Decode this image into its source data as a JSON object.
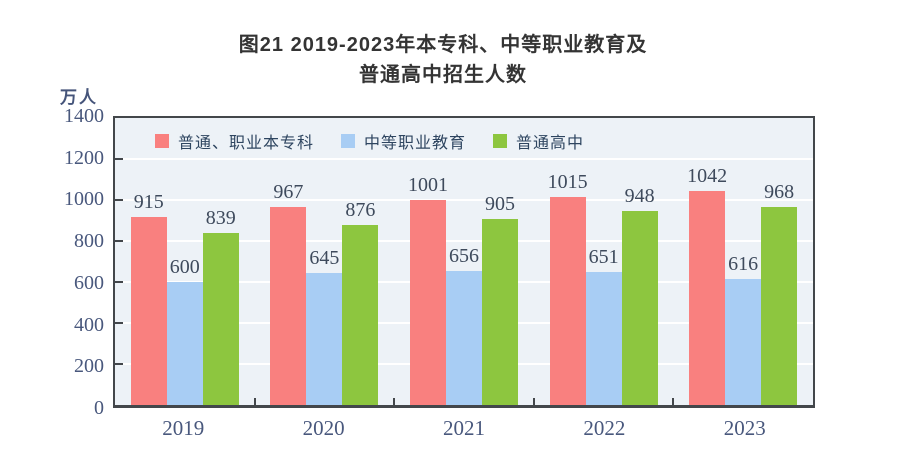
{
  "title": {
    "line1": "图21  2019-2023年本专科、中等职业教育及",
    "line2": "普通高中招生人数"
  },
  "chart_data": {
    "type": "bar",
    "title": "图21 2019-2023年本专科、中等职业教育及普通高中招生人数",
    "xlabel": "",
    "ylabel": "万人",
    "categories": [
      "2019",
      "2020",
      "2021",
      "2022",
      "2023"
    ],
    "series": [
      {
        "name": "普通、职业本专科",
        "color": "#f9807f",
        "values": [
          915,
          967,
          1001,
          1015,
          1042
        ]
      },
      {
        "name": "中等职业教育",
        "color": "#a8cdf4",
        "values": [
          600,
          645,
          656,
          651,
          616
        ]
      },
      {
        "name": "普通高中",
        "color": "#8dc63f",
        "values": [
          839,
          876,
          905,
          948,
          968
        ]
      }
    ],
    "ylim": [
      0,
      1400
    ],
    "yticks": [
      0,
      200,
      400,
      600,
      800,
      1000,
      1200,
      1400
    ],
    "grid": true,
    "legend_position": "top-inside-left"
  },
  "colors": {
    "plot_background": "#edf2f7",
    "gridline": "#ffffff",
    "axis_border": "#43474b",
    "value_label": "#3e4a5c",
    "axis_label": "#49587d",
    "legend_text": "#2e4560",
    "title_text": "#343434"
  }
}
